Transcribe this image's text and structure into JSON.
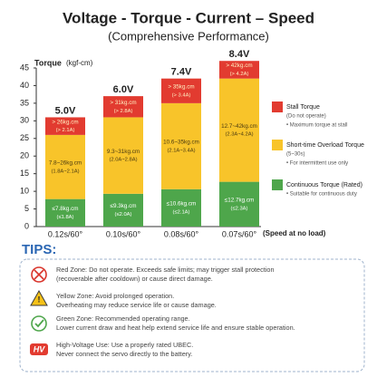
{
  "chart_data": {
    "type": "stacked-bar",
    "title": "Voltage - Torque - Current – Speed",
    "subtitle": "(Comprehensive Performance)",
    "y_label": "Torque",
    "y_unit": "(kgf-cm)",
    "x_label": "(Speed at no load)",
    "categories": [
      "0.12s/60°",
      "0.10s/60°",
      "0.08s/60°",
      "0.07s/60°"
    ],
    "bar_labels": [
      "5.0V",
      "6.0V",
      "7.4V",
      "8.4V"
    ],
    "ylim": [
      0,
      45
    ],
    "yticks": [
      0,
      5,
      10,
      15,
      20,
      25,
      30,
      35,
      40,
      45
    ],
    "grid": false,
    "series": [
      {
        "name": "Continuous Torque (Rated)",
        "color": "#4ea64b",
        "label_color": "#ffffff",
        "values": [
          7.8,
          9.3,
          10.6,
          12.7
        ],
        "segment_labels": [
          [
            "≤7.8kg.cm",
            "(≤1.8A)"
          ],
          [
            "≤9.3kg.cm",
            "(≤2.0A)"
          ],
          [
            "≤10.6kg.cm",
            "(≤2.1A)"
          ],
          [
            "≤12.7kg.cm",
            "(≤2.3A)"
          ]
        ],
        "legend_notes": [
          "• Suitable for continuous duty"
        ]
      },
      {
        "name": "Short-time Overload Torque",
        "color": "#f8c42a",
        "label_color": "#4a3a10",
        "values": [
          18.2,
          21.7,
          24.4,
          29.3
        ],
        "segment_labels": [
          [
            "7.8~26kg.cm",
            "(1.8A~2.1A)"
          ],
          [
            "9.3~31kg.cm",
            "(2.0A~2.8A)"
          ],
          [
            "10.6~35kg.cm",
            "(2.1A~3.4A)"
          ],
          [
            "12.7~42kg.cm",
            "(2.3A~4.2A)"
          ]
        ],
        "legend_notes": [
          "(5~30s)",
          "• For intermittent use only"
        ]
      },
      {
        "name": "Stall Torque",
        "color": "#e23b30",
        "label_color": "#fff3c4",
        "values": [
          5,
          6,
          7,
          5
        ],
        "segment_labels": [
          [
            "> 26kg.cm",
            "(> 2.1A)"
          ],
          [
            "> 31kg.cm",
            "(> 2.8A)"
          ],
          [
            "> 35kg.cm",
            "(> 3.4A)"
          ],
          [
            "> 42kg.cm",
            "(> 4.2A)"
          ]
        ],
        "legend_notes": [
          "(Do not operate)",
          "• Maximum torque at stall"
        ]
      }
    ]
  },
  "tips": {
    "title": "TIPS:",
    "items": [
      {
        "lines": [
          "Red Zone: Do not operate. Exceeds safe limits; may trigger stall protection",
          "(recoverable after cooldown) or cause direct damage."
        ]
      },
      {
        "lines": [
          "Yellow Zone: Avoid prolonged operation.",
          "Overheating may reduce service life or cause damage."
        ]
      },
      {
        "lines": [
          "Green Zone: Recommended operating range.",
          "Lower current draw and heat help extend service life and ensure stable operation."
        ]
      },
      {
        "icon_text": "HV",
        "lines": [
          "High-Voltage Use: Use a properly rated UBEC.",
          "Never connect the servo directly to the battery."
        ]
      }
    ]
  }
}
